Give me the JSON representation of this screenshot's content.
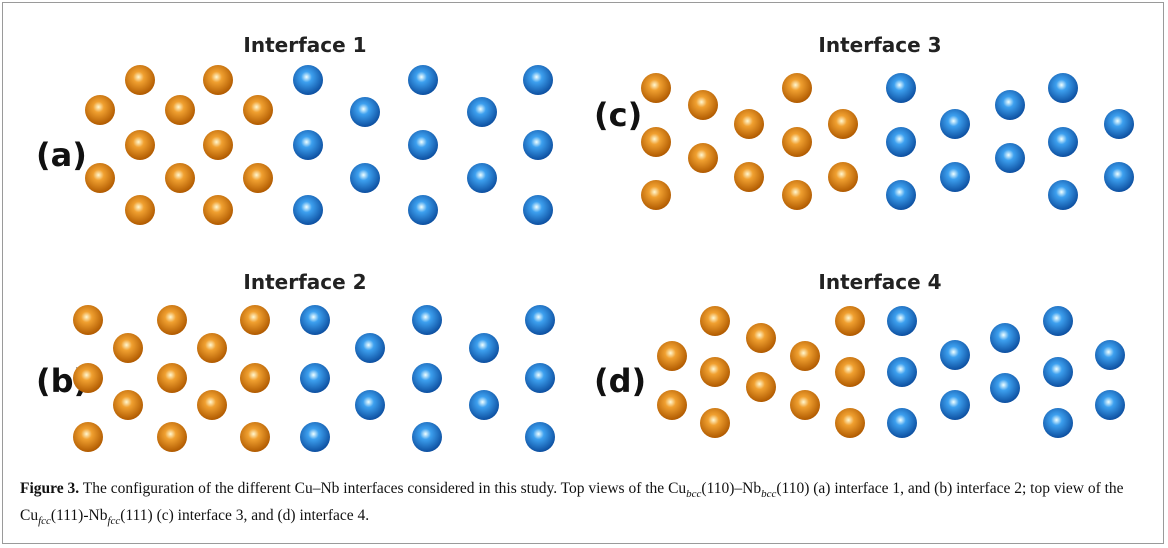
{
  "figure": {
    "panels": [
      {
        "title": "Interface 1",
        "label": "(a)"
      },
      {
        "title": "Interface 2",
        "label": "(b)"
      },
      {
        "title": "Interface 3",
        "label": "(c)"
      },
      {
        "title": "Interface 4",
        "label": "(d)"
      }
    ],
    "caption": {
      "label": "Figure 3.",
      "parts": [
        "The configuration of the different Cu–Nb interfaces considered in this study. Top views of the Cu",
        "bcc",
        "(110)–Nb",
        "bcc",
        "(110) (a) interface 1, and (b) interface 2; top view of the Cu",
        "fcc",
        "(111)-Nb",
        "fcc",
        "(111) (c) interface 3, and (d) interface 4."
      ]
    }
  }
}
